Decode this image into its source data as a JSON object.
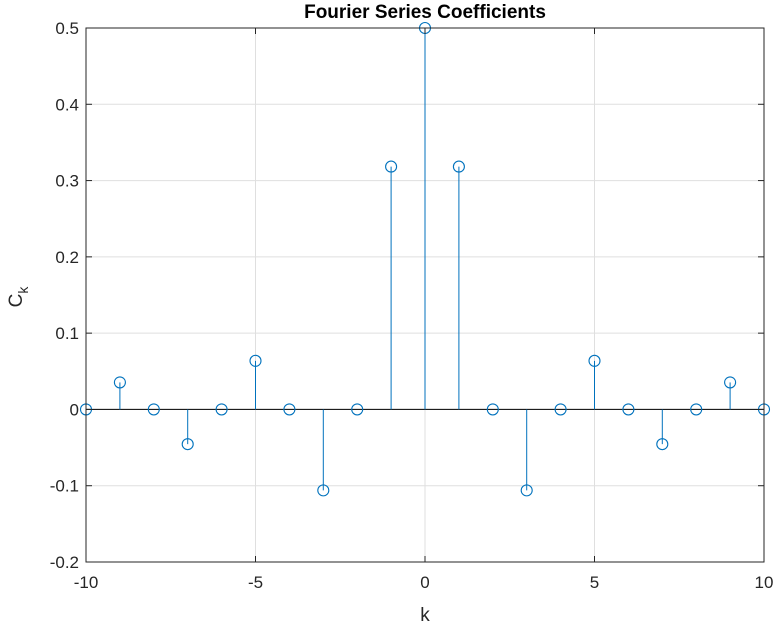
{
  "chart_data": {
    "type": "stem",
    "title": "Fourier Series Coefficients",
    "xlabel": "k",
    "ylabel_main": "C",
    "ylabel_sub": "k",
    "xlim": [
      -10,
      10
    ],
    "ylim": [
      -0.2,
      0.5
    ],
    "xticks": [
      -10,
      -5,
      0,
      5,
      10
    ],
    "yticks": [
      -0.2,
      -0.1,
      0,
      0.1,
      0.2,
      0.3,
      0.4,
      0.5
    ],
    "grid": true,
    "x": [
      -10,
      -9,
      -8,
      -7,
      -6,
      -5,
      -4,
      -3,
      -2,
      -1,
      0,
      1,
      2,
      3,
      4,
      5,
      6,
      7,
      8,
      9,
      10
    ],
    "values": [
      0,
      0.0354,
      0,
      -0.0455,
      0,
      0.0637,
      0,
      -0.1061,
      0,
      0.3183,
      0.5,
      0.3183,
      0,
      -0.1061,
      0,
      0.0637,
      0,
      -0.0455,
      0,
      0.0354,
      0
    ],
    "colors": {
      "stem": "#0072BD",
      "grid": "#dfdfdf",
      "axis": "#262626"
    }
  }
}
